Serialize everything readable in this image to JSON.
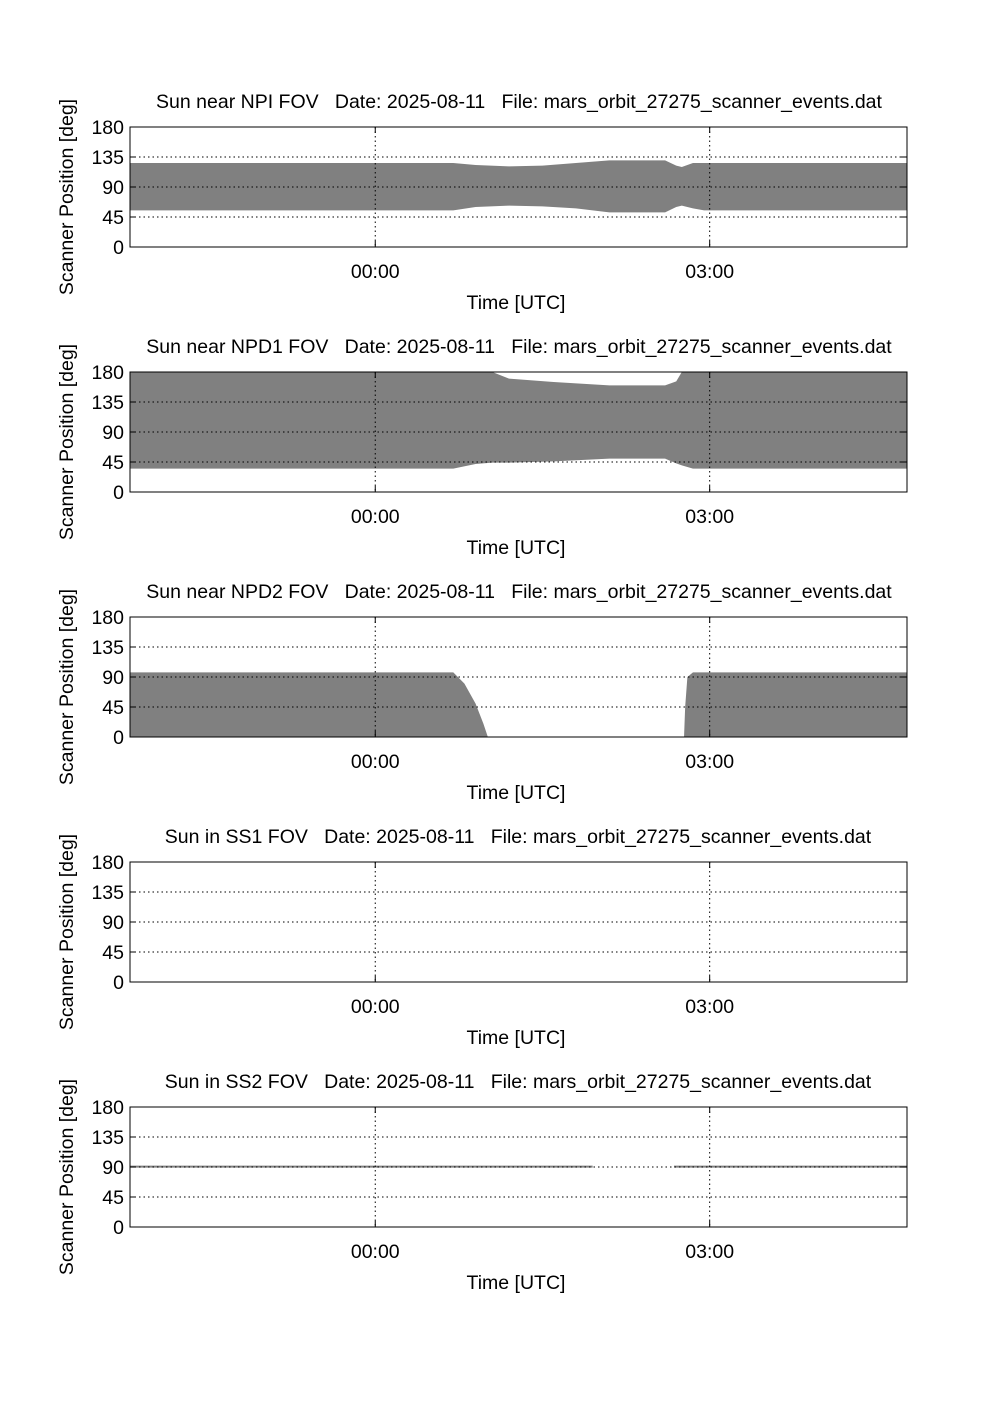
{
  "figure": {
    "colors": {
      "fill": "#808080",
      "axis": "#000000",
      "grid": "#000000",
      "background": "#ffffff"
    }
  },
  "chart_data": [
    {
      "type": "area",
      "title": "Sun near NPI FOV   Date: 2025-08-11   File: mars_orbit_27275_scanner_events.dat",
      "xlabel": "Time [UTC]",
      "ylabel": "Scanner Position [deg]",
      "x_unit": "hours relative to 00:00 UTC",
      "xlim": [
        -2.2,
        4.77
      ],
      "ylim": [
        0,
        180
      ],
      "yticks": [
        0,
        45,
        90,
        135,
        180
      ],
      "xticks": [
        {
          "value": 0,
          "label": "00:00"
        },
        {
          "value": 3,
          "label": "03:00"
        }
      ],
      "grid": true,
      "series": [
        {
          "fill": "#808080",
          "x": [
            -2.2,
            0.0,
            0.7,
            0.9,
            1.2,
            1.5,
            1.8,
            2.1,
            2.6,
            2.7,
            2.75,
            2.85,
            2.95,
            3.0,
            4.77
          ],
          "upper": [
            126,
            126,
            126,
            123,
            121,
            122,
            126,
            130,
            130,
            122,
            120,
            126,
            126,
            126,
            126
          ],
          "lower": [
            55,
            55,
            55,
            60,
            62,
            61,
            58,
            52,
            52,
            60,
            62,
            58,
            55,
            55,
            55
          ]
        }
      ]
    },
    {
      "type": "area",
      "title": "Sun near NPD1 FOV   Date: 2025-08-11   File: mars_orbit_27275_scanner_events.dat",
      "xlabel": "Time [UTC]",
      "ylabel": "Scanner Position [deg]",
      "x_unit": "hours relative to 00:00 UTC",
      "xlim": [
        -2.2,
        4.77
      ],
      "ylim": [
        0,
        180
      ],
      "yticks": [
        0,
        45,
        90,
        135,
        180
      ],
      "xticks": [
        {
          "value": 0,
          "label": "00:00"
        },
        {
          "value": 3,
          "label": "03:00"
        }
      ],
      "grid": true,
      "series": [
        {
          "fill": "#808080",
          "x": [
            -2.2,
            0.0,
            0.7,
            0.9,
            1.05,
            1.2,
            1.6,
            2.1,
            2.6,
            2.7,
            2.75,
            2.85,
            3.0,
            4.77
          ],
          "upper": [
            180,
            180,
            180,
            180,
            180,
            170,
            165,
            160,
            160,
            166,
            180,
            180,
            180,
            180
          ],
          "lower": [
            35,
            35,
            35,
            42,
            44,
            44,
            46,
            50,
            50,
            43,
            40,
            35,
            35,
            35
          ]
        }
      ]
    },
    {
      "type": "area",
      "title": "Sun near NPD2 FOV   Date: 2025-08-11   File: mars_orbit_27275_scanner_events.dat",
      "xlabel": "Time [UTC]",
      "ylabel": "Scanner Position [deg]",
      "x_unit": "hours relative to 00:00 UTC",
      "xlim": [
        -2.2,
        4.77
      ],
      "ylim": [
        0,
        180
      ],
      "yticks": [
        0,
        45,
        90,
        135,
        180
      ],
      "xticks": [
        {
          "value": 0,
          "label": "00:00"
        },
        {
          "value": 3,
          "label": "03:00"
        }
      ],
      "grid": true,
      "series": [
        {
          "fill": "#808080",
          "x": [
            -2.2,
            0.0,
            0.7,
            0.8,
            0.9,
            0.97,
            1.0,
            1.01,
            2.77,
            2.78,
            2.8,
            2.85,
            3.0,
            4.77
          ],
          "upper": [
            97,
            97,
            97,
            80,
            50,
            20,
            5,
            0,
            0,
            45,
            90,
            97,
            97,
            97
          ],
          "lower": [
            0,
            0,
            0,
            0,
            0,
            0,
            0,
            0,
            0,
            0,
            0,
            0,
            0,
            0
          ]
        }
      ]
    },
    {
      "type": "area",
      "title": "Sun in SS1 FOV   Date: 2025-08-11   File: mars_orbit_27275_scanner_events.dat",
      "xlabel": "Time [UTC]",
      "ylabel": "Scanner Position [deg]",
      "x_unit": "hours relative to 00:00 UTC",
      "xlim": [
        -2.2,
        4.77
      ],
      "ylim": [
        0,
        180
      ],
      "yticks": [
        0,
        45,
        90,
        135,
        180
      ],
      "xticks": [
        {
          "value": 0,
          "label": "00:00"
        },
        {
          "value": 3,
          "label": "03:00"
        }
      ],
      "grid": true,
      "series": []
    },
    {
      "type": "area",
      "title": "Sun in SS2 FOV   Date: 2025-08-11   File: mars_orbit_27275_scanner_events.dat",
      "xlabel": "Time [UTC]",
      "ylabel": "Scanner Position [deg]",
      "x_unit": "hours relative to 00:00 UTC",
      "xlim": [
        -2.2,
        4.77
      ],
      "ylim": [
        0,
        180
      ],
      "yticks": [
        0,
        45,
        90,
        135,
        180
      ],
      "xticks": [
        {
          "value": 0,
          "label": "00:00"
        },
        {
          "value": 3,
          "label": "03:00"
        }
      ],
      "grid": true,
      "series": [
        {
          "fill": "#808080",
          "x": [
            -2.2,
            1.95
          ],
          "upper": [
            92,
            92
          ],
          "lower": [
            89,
            89
          ]
        },
        {
          "fill": "#808080",
          "x": [
            2.68,
            4.77
          ],
          "upper": [
            92,
            92
          ],
          "lower": [
            89,
            89
          ]
        }
      ]
    }
  ]
}
